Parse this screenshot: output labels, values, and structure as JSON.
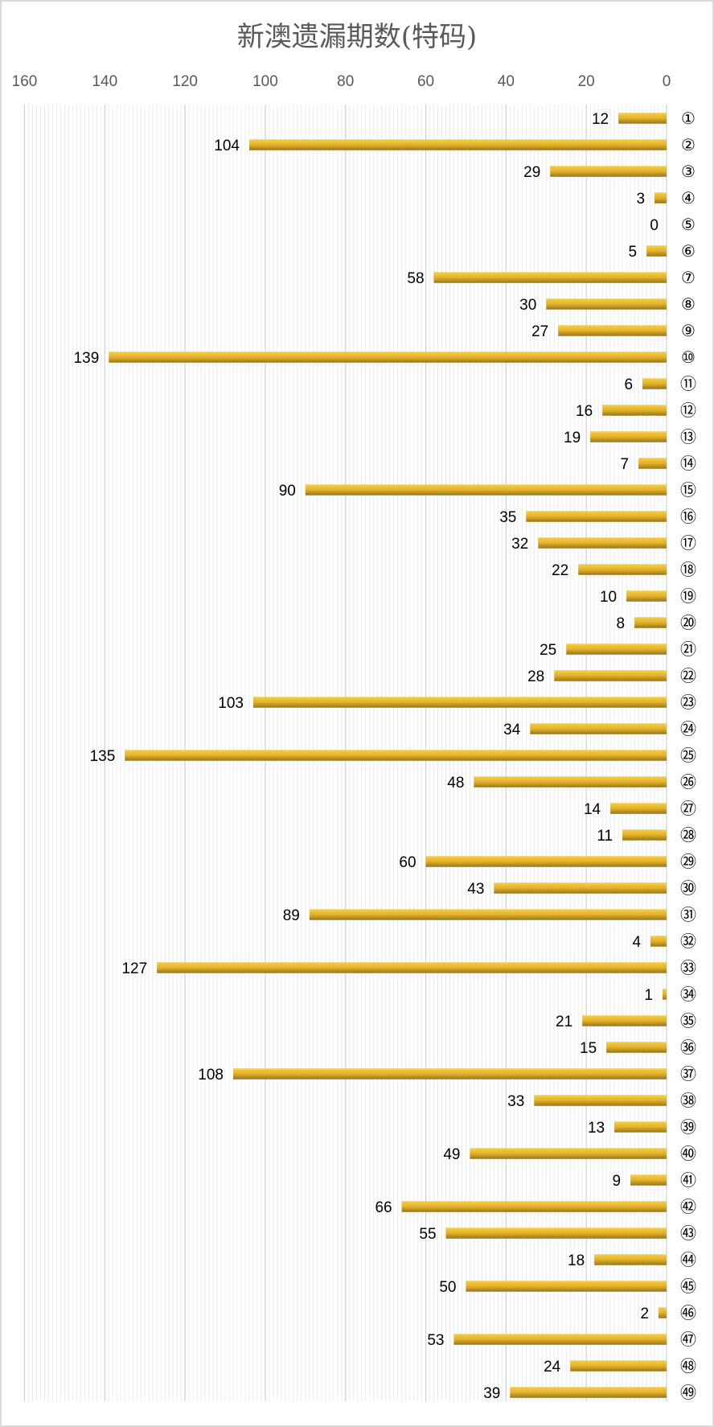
{
  "chart_data": {
    "type": "bar",
    "orientation": "horizontal",
    "title": "新澳遗漏期数(特码)",
    "xaxis": "reversed, labels on top",
    "xlim": [
      0,
      160
    ],
    "xticks": [
      "0",
      "20",
      "40",
      "60",
      "80",
      "100",
      "120",
      "140",
      "160"
    ],
    "grid": true,
    "bar_color": "#e2b22a",
    "categories": [
      "①",
      "②",
      "③",
      "④",
      "⑤",
      "⑥",
      "⑦",
      "⑧",
      "⑨",
      "⑩",
      "⑪",
      "⑫",
      "⑬",
      "⑭",
      "⑮",
      "⑯",
      "⑰",
      "⑱",
      "⑲",
      "⑳",
      "㉑",
      "㉒",
      "㉓",
      "㉔",
      "㉕",
      "㉖",
      "㉗",
      "㉘",
      "㉙",
      "㉚",
      "㉛",
      "㉜",
      "㉝",
      "㉞",
      "㉟",
      "㊱",
      "㊲",
      "㊳",
      "㊴",
      "㊵",
      "㊶",
      "㊷",
      "㊸",
      "㊹",
      "㊺",
      "㊻",
      "㊼",
      "㊽",
      "㊾"
    ],
    "values": [
      12,
      104,
      29,
      3,
      0,
      5,
      58,
      30,
      27,
      139,
      6,
      16,
      19,
      7,
      90,
      35,
      32,
      22,
      10,
      8,
      25,
      28,
      103,
      34,
      135,
      48,
      14,
      11,
      60,
      43,
      89,
      4,
      127,
      1,
      21,
      15,
      108,
      33,
      13,
      49,
      9,
      66,
      55,
      18,
      50,
      2,
      53,
      24,
      39
    ]
  }
}
